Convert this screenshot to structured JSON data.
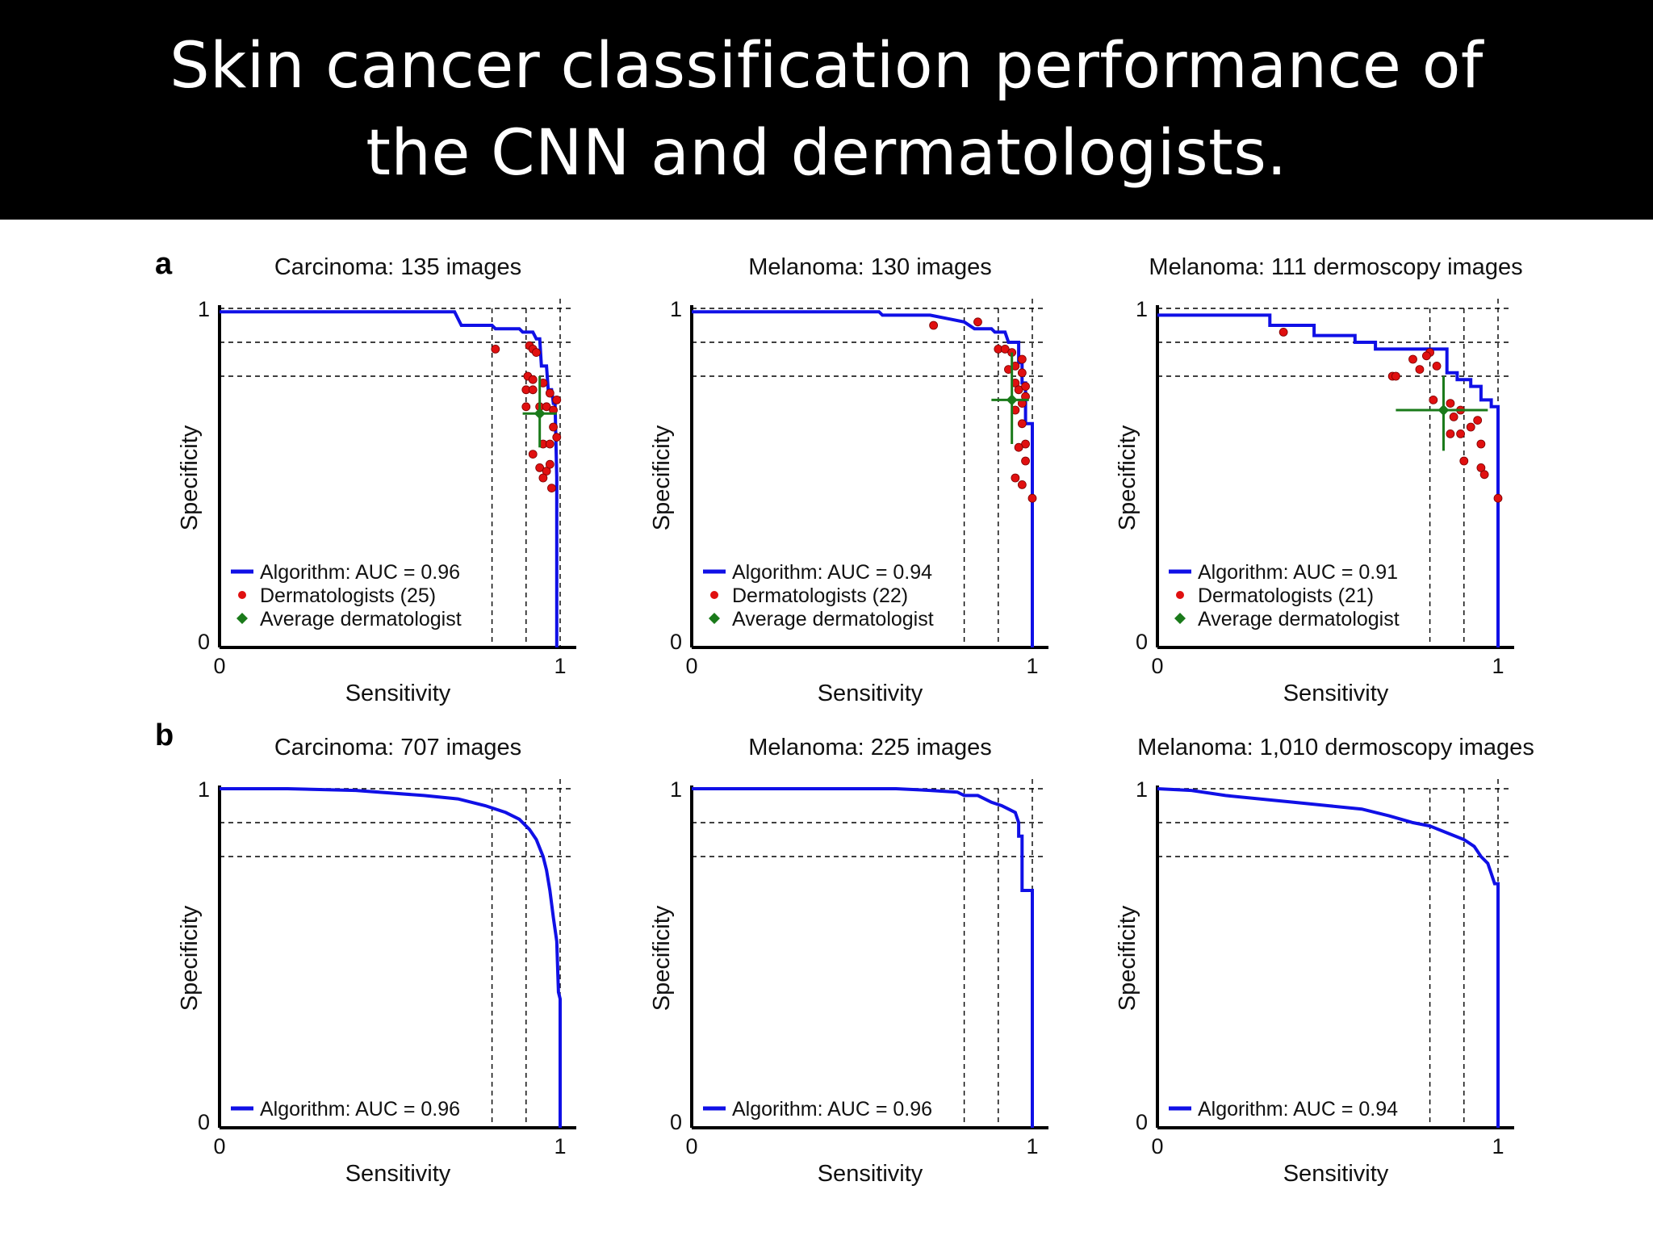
{
  "title_lines": [
    "Skin cancer classification performance of",
    "the CNN and dermatologists."
  ],
  "panel_labels": {
    "a": "a",
    "b": "b"
  },
  "colors": {
    "algorithm": "#1010e6",
    "dermatologist": "#e01010",
    "average": "#1a7a1a"
  },
  "chart_data": [
    {
      "type": "line",
      "panel": "a",
      "title": "Carcinoma: 135 images",
      "xlabel": "Sensitivity",
      "ylabel": "Specificity",
      "xlim": [
        0,
        1
      ],
      "ylim": [
        0,
        1
      ],
      "x_ticks": [
        "0",
        "1"
      ],
      "y_ticks": [
        "0",
        "1"
      ],
      "ref_lines": {
        "specificity": [
          0.9,
          0.8
        ],
        "sensitivity": [
          0.8,
          0.9
        ]
      },
      "series": [
        {
          "name": "Algorithm: AUC = 0.96",
          "kind": "roc",
          "points": [
            [
              0,
              0.99
            ],
            [
              0.69,
              0.99
            ],
            [
              0.7,
              0.97
            ],
            [
              0.71,
              0.95
            ],
            [
              0.8,
              0.95
            ],
            [
              0.81,
              0.94
            ],
            [
              0.88,
              0.94
            ],
            [
              0.89,
              0.93
            ],
            [
              0.92,
              0.93
            ],
            [
              0.93,
              0.91
            ],
            [
              0.94,
              0.91
            ],
            [
              0.945,
              0.83
            ],
            [
              0.96,
              0.83
            ],
            [
              0.965,
              0.76
            ],
            [
              0.975,
              0.76
            ],
            [
              0.98,
              0.72
            ],
            [
              0.985,
              0.72
            ],
            [
              0.99,
              0.5
            ],
            [
              0.99,
              0
            ]
          ]
        },
        {
          "name": "Dermatologists (25)",
          "kind": "points",
          "points": [
            [
              0.81,
              0.88
            ],
            [
              0.91,
              0.89
            ],
            [
              0.92,
              0.88
            ],
            [
              0.93,
              0.87
            ],
            [
              0.905,
              0.8
            ],
            [
              0.92,
              0.79
            ],
            [
              0.9,
              0.76
            ],
            [
              0.92,
              0.76
            ],
            [
              0.95,
              0.78
            ],
            [
              0.97,
              0.75
            ],
            [
              0.99,
              0.73
            ],
            [
              0.9,
              0.71
            ],
            [
              0.94,
              0.71
            ],
            [
              0.96,
              0.71
            ],
            [
              0.98,
              0.7
            ],
            [
              0.99,
              0.62
            ],
            [
              0.95,
              0.6
            ],
            [
              0.97,
              0.6
            ],
            [
              0.92,
              0.57
            ],
            [
              0.94,
              0.53
            ],
            [
              0.96,
              0.52
            ],
            [
              0.97,
              0.54
            ],
            [
              0.975,
              0.47
            ],
            [
              0.95,
              0.5
            ],
            [
              0.98,
              0.65
            ]
          ]
        },
        {
          "name": "Average dermatologist",
          "kind": "average",
          "x": 0.94,
          "y": 0.69,
          "xerr": [
            0.89,
            0.99
          ],
          "yerr": [
            0.59,
            0.8
          ]
        }
      ]
    },
    {
      "type": "line",
      "panel": "a",
      "title": "Melanoma: 130 images",
      "xlabel": "Sensitivity",
      "ylabel": "Specificity",
      "xlim": [
        0,
        1
      ],
      "ylim": [
        0,
        1
      ],
      "x_ticks": [
        "0",
        "1"
      ],
      "y_ticks": [
        "0",
        "1"
      ],
      "ref_lines": {
        "specificity": [
          0.9,
          0.8
        ],
        "sensitivity": [
          0.8,
          0.9
        ]
      },
      "series": [
        {
          "name": "Algorithm: AUC = 0.94",
          "kind": "roc",
          "points": [
            [
              0,
              0.99
            ],
            [
              0.55,
              0.99
            ],
            [
              0.56,
              0.98
            ],
            [
              0.7,
              0.98
            ],
            [
              0.75,
              0.97
            ],
            [
              0.8,
              0.96
            ],
            [
              0.83,
              0.94
            ],
            [
              0.88,
              0.94
            ],
            [
              0.89,
              0.93
            ],
            [
              0.92,
              0.93
            ],
            [
              0.93,
              0.9
            ],
            [
              0.96,
              0.9
            ],
            [
              0.96,
              0.84
            ],
            [
              0.97,
              0.84
            ],
            [
              0.97,
              0.78
            ],
            [
              0.98,
              0.78
            ],
            [
              0.98,
              0.66
            ],
            [
              1,
              0.66
            ],
            [
              1,
              0
            ]
          ]
        },
        {
          "name": "Dermatologists (22)",
          "kind": "points",
          "points": [
            [
              0.71,
              0.95
            ],
            [
              0.84,
              0.96
            ],
            [
              0.9,
              0.88
            ],
            [
              0.92,
              0.88
            ],
            [
              0.94,
              0.87
            ],
            [
              0.93,
              0.82
            ],
            [
              0.95,
              0.83
            ],
            [
              0.97,
              0.85
            ],
            [
              0.97,
              0.81
            ],
            [
              0.95,
              0.78
            ],
            [
              0.96,
              0.76
            ],
            [
              0.98,
              0.77
            ],
            [
              0.98,
              0.74
            ],
            [
              0.97,
              0.72
            ],
            [
              0.95,
              0.7
            ],
            [
              0.97,
              0.66
            ],
            [
              0.98,
              0.6
            ],
            [
              0.96,
              0.59
            ],
            [
              0.98,
              0.55
            ],
            [
              0.95,
              0.5
            ],
            [
              0.97,
              0.48
            ],
            [
              1,
              0.44
            ]
          ]
        },
        {
          "name": "Average dermatologist",
          "kind": "average",
          "x": 0.94,
          "y": 0.73,
          "xerr": [
            0.88,
            0.99
          ],
          "yerr": [
            0.6,
            0.87
          ]
        }
      ]
    },
    {
      "type": "line",
      "panel": "a",
      "title": "Melanoma: 111 dermoscopy images",
      "xlabel": "Sensitivity",
      "ylabel": "Specificity",
      "xlim": [
        0,
        1
      ],
      "ylim": [
        0,
        1
      ],
      "x_ticks": [
        "0",
        "1"
      ],
      "y_ticks": [
        "0",
        "1"
      ],
      "ref_lines": {
        "specificity": [
          0.9,
          0.8
        ],
        "sensitivity": [
          0.8,
          0.9
        ]
      },
      "series": [
        {
          "name": "Algorithm: AUC = 0.91",
          "kind": "roc",
          "points": [
            [
              0,
              0.98
            ],
            [
              0.33,
              0.98
            ],
            [
              0.33,
              0.95
            ],
            [
              0.46,
              0.95
            ],
            [
              0.46,
              0.92
            ],
            [
              0.58,
              0.92
            ],
            [
              0.58,
              0.9
            ],
            [
              0.64,
              0.9
            ],
            [
              0.64,
              0.88
            ],
            [
              0.85,
              0.88
            ],
            [
              0.85,
              0.81
            ],
            [
              0.88,
              0.81
            ],
            [
              0.88,
              0.79
            ],
            [
              0.92,
              0.79
            ],
            [
              0.92,
              0.77
            ],
            [
              0.95,
              0.77
            ],
            [
              0.95,
              0.73
            ],
            [
              0.98,
              0.73
            ],
            [
              0.98,
              0.71
            ],
            [
              1,
              0.71
            ],
            [
              1,
              0
            ]
          ]
        },
        {
          "name": "Dermatologists (21)",
          "kind": "points",
          "points": [
            [
              0.37,
              0.93
            ],
            [
              0.69,
              0.8
            ],
            [
              0.7,
              0.8
            ],
            [
              0.75,
              0.85
            ],
            [
              0.77,
              0.82
            ],
            [
              0.8,
              0.87
            ],
            [
              0.79,
              0.86
            ],
            [
              0.82,
              0.83
            ],
            [
              0.81,
              0.73
            ],
            [
              0.86,
              0.72
            ],
            [
              0.87,
              0.68
            ],
            [
              0.89,
              0.7
            ],
            [
              0.86,
              0.63
            ],
            [
              0.89,
              0.63
            ],
            [
              0.92,
              0.65
            ],
            [
              0.94,
              0.67
            ],
            [
              0.95,
              0.6
            ],
            [
              0.9,
              0.55
            ],
            [
              0.95,
              0.53
            ],
            [
              0.96,
              0.51
            ],
            [
              1,
              0.44
            ]
          ]
        },
        {
          "name": "Average dermatologist",
          "kind": "average",
          "x": 0.84,
          "y": 0.7,
          "xerr": [
            0.7,
            0.97
          ],
          "yerr": [
            0.58,
            0.8
          ]
        }
      ]
    },
    {
      "type": "line",
      "panel": "b",
      "title": "Carcinoma: 707 images",
      "xlabel": "Sensitivity",
      "ylabel": "Specificity",
      "xlim": [
        0,
        1
      ],
      "ylim": [
        0,
        1
      ],
      "x_ticks": [
        "0",
        "1"
      ],
      "y_ticks": [
        "0",
        "1"
      ],
      "ref_lines": {
        "specificity": [
          0.9,
          0.8
        ],
        "sensitivity": [
          0.8,
          0.9
        ]
      },
      "series": [
        {
          "name": "Algorithm: AUC = 0.96",
          "kind": "roc",
          "points": [
            [
              0,
              1
            ],
            [
              0.2,
              1
            ],
            [
              0.4,
              0.995
            ],
            [
              0.6,
              0.98
            ],
            [
              0.7,
              0.97
            ],
            [
              0.78,
              0.95
            ],
            [
              0.84,
              0.93
            ],
            [
              0.88,
              0.91
            ],
            [
              0.91,
              0.88
            ],
            [
              0.93,
              0.85
            ],
            [
              0.95,
              0.8
            ],
            [
              0.96,
              0.76
            ],
            [
              0.97,
              0.7
            ],
            [
              0.98,
              0.62
            ],
            [
              0.99,
              0.55
            ],
            [
              0.995,
              0.4
            ],
            [
              1,
              0.38
            ],
            [
              1,
              0
            ]
          ]
        }
      ]
    },
    {
      "type": "line",
      "panel": "b",
      "title": "Melanoma: 225 images",
      "xlabel": "Sensitivity",
      "ylabel": "Specificity",
      "xlim": [
        0,
        1
      ],
      "ylim": [
        0,
        1
      ],
      "x_ticks": [
        "0",
        "1"
      ],
      "y_ticks": [
        "0",
        "1"
      ],
      "ref_lines": {
        "specificity": [
          0.9,
          0.8
        ],
        "sensitivity": [
          0.8,
          0.9
        ]
      },
      "series": [
        {
          "name": "Algorithm: AUC = 0.96",
          "kind": "roc",
          "points": [
            [
              0,
              1
            ],
            [
              0.6,
              1
            ],
            [
              0.7,
              0.995
            ],
            [
              0.78,
              0.99
            ],
            [
              0.8,
              0.98
            ],
            [
              0.84,
              0.98
            ],
            [
              0.86,
              0.97
            ],
            [
              0.88,
              0.96
            ],
            [
              0.91,
              0.95
            ],
            [
              0.93,
              0.94
            ],
            [
              0.95,
              0.93
            ],
            [
              0.96,
              0.9
            ],
            [
              0.96,
              0.86
            ],
            [
              0.97,
              0.86
            ],
            [
              0.97,
              0.7
            ],
            [
              1,
              0.7
            ],
            [
              1,
              0
            ]
          ]
        }
      ]
    },
    {
      "type": "line",
      "panel": "b",
      "title": "Melanoma: 1,010 dermoscopy images",
      "xlabel": "Sensitivity",
      "ylabel": "Specificity",
      "xlim": [
        0,
        1
      ],
      "ylim": [
        0,
        1
      ],
      "x_ticks": [
        "0",
        "1"
      ],
      "y_ticks": [
        "0",
        "1"
      ],
      "ref_lines": {
        "specificity": [
          0.9,
          0.8
        ],
        "sensitivity": [
          0.8,
          0.9
        ]
      },
      "series": [
        {
          "name": "Algorithm: AUC = 0.94",
          "kind": "roc",
          "points": [
            [
              0,
              1
            ],
            [
              0.1,
              0.995
            ],
            [
              0.2,
              0.98
            ],
            [
              0.3,
              0.97
            ],
            [
              0.4,
              0.96
            ],
            [
              0.5,
              0.95
            ],
            [
              0.6,
              0.94
            ],
            [
              0.68,
              0.92
            ],
            [
              0.75,
              0.9
            ],
            [
              0.8,
              0.89
            ],
            [
              0.85,
              0.87
            ],
            [
              0.9,
              0.85
            ],
            [
              0.93,
              0.83
            ],
            [
              0.95,
              0.8
            ],
            [
              0.97,
              0.78
            ],
            [
              0.98,
              0.75
            ],
            [
              0.99,
              0.72
            ],
            [
              1,
              0.72
            ],
            [
              1,
              0
            ]
          ]
        }
      ]
    }
  ]
}
